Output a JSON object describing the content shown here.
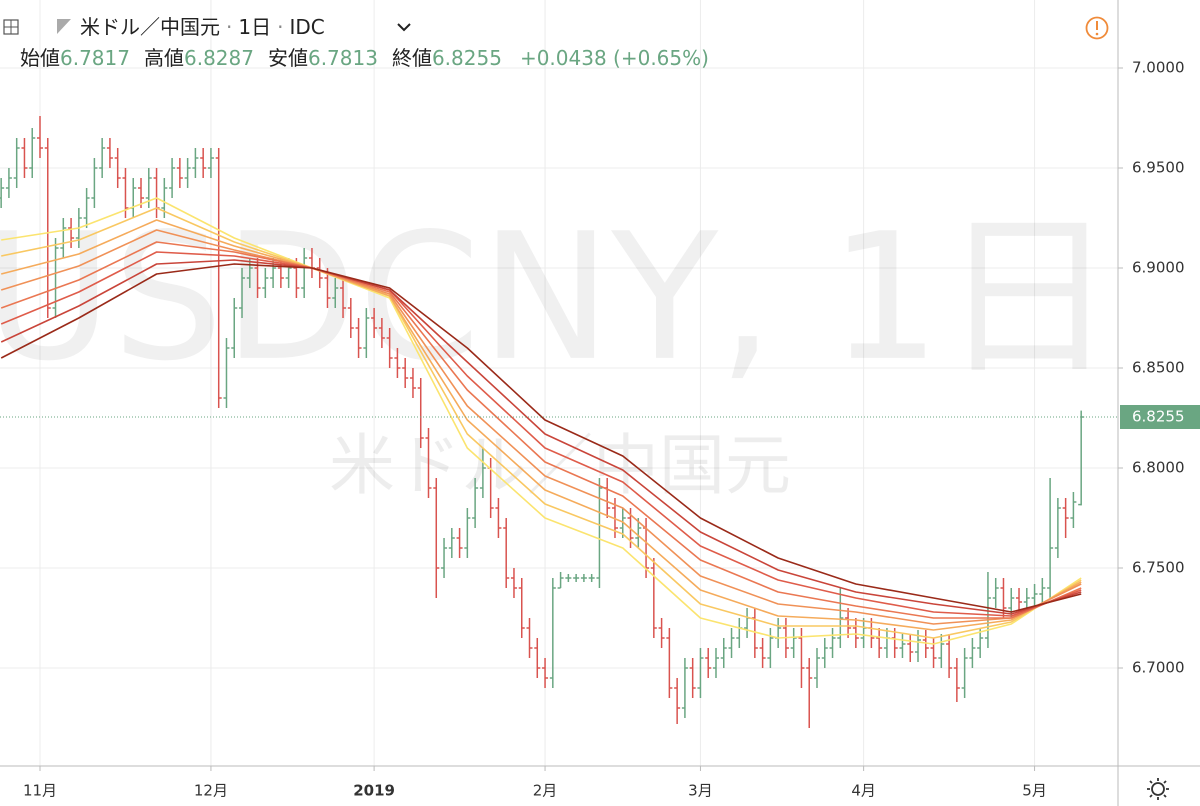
{
  "chart_data": {
    "type": "ohlc",
    "symbol": "米ドル／中国元",
    "interval": "1日",
    "source": "IDC",
    "watermark": "USDCNY, 1日",
    "ohlc_labels": [
      "始値",
      "高値",
      "安値",
      "終値"
    ],
    "change": "+0.0438 (+0.65%)",
    "up_color": "#6aa682",
    "down_color": "#d9534f",
    "ylim": [
      6.651,
      7.034
    ],
    "yticks": [
      {
        "value": 6.7,
        "label": "6.7000"
      },
      {
        "value": 6.75,
        "label": "6.7500"
      },
      {
        "value": 6.8,
        "label": "6.8000"
      },
      {
        "value": 6.85,
        "label": "6.8500"
      },
      {
        "value": 6.9,
        "label": "6.9000"
      },
      {
        "value": 6.95,
        "label": "6.9500"
      },
      {
        "value": 7,
        "label": "7.0000"
      }
    ],
    "grid": true,
    "categories": [
      null,
      null,
      null,
      null,
      null,
      "11月",
      null,
      null,
      null,
      null,
      null,
      null,
      null,
      null,
      null,
      null,
      null,
      null,
      null,
      null,
      null,
      null,
      null,
      null,
      null,
      null,
      null,
      "12月",
      null,
      null,
      null,
      null,
      null,
      null,
      null,
      null,
      null,
      null,
      null,
      null,
      null,
      null,
      null,
      null,
      null,
      null,
      null,
      null,
      "2019",
      null,
      null,
      null,
      null,
      null,
      null,
      null,
      null,
      null,
      null,
      null,
      null,
      null,
      null,
      null,
      null,
      null,
      null,
      null,
      null,
      null,
      "2月",
      null,
      null,
      null,
      null,
      null,
      null,
      null,
      null,
      null,
      null,
      null,
      null,
      null,
      null,
      null,
      null,
      null,
      null,
      null,
      "3月",
      null,
      null,
      null,
      null,
      null,
      null,
      null,
      null,
      null,
      null,
      null,
      null,
      null,
      null,
      null,
      null,
      null,
      null,
      null,
      null,
      "4月",
      null,
      null,
      null,
      null,
      null,
      null,
      null,
      null,
      null,
      null,
      null,
      null,
      null,
      null,
      null,
      null,
      null,
      null,
      null,
      null,
      null,
      "5月",
      null,
      null,
      null,
      null,
      null,
      null
    ],
    "open": [
      6.935,
      6.94,
      6.945,
      6.96,
      6.95,
      6.965,
      6.96,
      6.88,
      6.91,
      6.92,
      6.915,
      6.925,
      6.935,
      6.95,
      6.96,
      6.955,
      6.945,
      6.93,
      6.94,
      6.935,
      6.945,
      6.93,
      6.94,
      6.95,
      6.945,
      6.95,
      6.955,
      6.95,
      6.955,
      6.835,
      6.86,
      6.88,
      6.895,
      6.9,
      6.89,
      6.895,
      6.9,
      6.895,
      6.9,
      6.89,
      6.905,
      6.9,
      6.895,
      6.885,
      6.89,
      6.88,
      6.87,
      6.86,
      6.875,
      6.87,
      6.865,
      6.855,
      6.85,
      6.845,
      6.84,
      6.815,
      6.79,
      6.75,
      6.76,
      6.765,
      6.76,
      6.775,
      6.79,
      6.8,
      6.78,
      6.77,
      6.745,
      6.74,
      6.72,
      6.71,
      6.7,
      6.695,
      6.74,
      6.745,
      6.745,
      6.745,
      6.745,
      6.745,
      6.79,
      6.78,
      6.77,
      6.775,
      6.765,
      6.77,
      6.75,
      6.72,
      6.715,
      6.69,
      6.68,
      6.7,
      6.69,
      6.705,
      6.7,
      6.705,
      6.71,
      6.715,
      6.72,
      6.725,
      6.71,
      6.705,
      6.715,
      6.72,
      6.71,
      6.715,
      6.7,
      6.695,
      6.705,
      6.71,
      6.715,
      6.725,
      6.72,
      6.715,
      6.72,
      6.715,
      6.71,
      6.715,
      6.71,
      6.712,
      6.708,
      6.714,
      6.71,
      6.705,
      6.712,
      6.7,
      6.69,
      6.705,
      6.71,
      6.715,
      6.735,
      6.74,
      6.73,
      6.735,
      6.733,
      6.735,
      6.737,
      6.74,
      6.76,
      6.78,
      6.775,
      6.7817
    ],
    "high": [
      6.945,
      6.95,
      6.965,
      6.965,
      6.97,
      6.976,
      6.965,
      6.915,
      6.925,
      6.925,
      6.93,
      6.94,
      6.955,
      6.965,
      6.965,
      6.96,
      6.95,
      6.945,
      6.945,
      6.95,
      6.95,
      6.945,
      6.955,
      6.955,
      6.955,
      6.96,
      6.96,
      6.96,
      6.96,
      6.865,
      6.885,
      6.9,
      6.905,
      6.905,
      6.9,
      6.905,
      6.905,
      6.905,
      6.905,
      6.91,
      6.91,
      6.905,
      6.9,
      6.895,
      6.895,
      6.885,
      6.875,
      6.88,
      6.88,
      6.875,
      6.87,
      6.86,
      6.855,
      6.85,
      6.845,
      6.82,
      6.795,
      6.765,
      6.77,
      6.77,
      6.78,
      6.795,
      6.81,
      6.805,
      6.785,
      6.775,
      6.75,
      6.745,
      6.725,
      6.715,
      6.705,
      6.745,
      6.748,
      6.747,
      6.747,
      6.747,
      6.747,
      6.795,
      6.795,
      6.785,
      6.78,
      6.78,
      6.775,
      6.775,
      6.755,
      6.725,
      6.72,
      6.695,
      6.705,
      6.705,
      6.71,
      6.71,
      6.71,
      6.715,
      6.72,
      6.725,
      6.73,
      6.73,
      6.715,
      6.72,
      6.725,
      6.725,
      6.72,
      6.72,
      6.705,
      6.71,
      6.715,
      6.72,
      6.74,
      6.73,
      6.725,
      6.725,
      6.725,
      6.72,
      6.72,
      6.72,
      6.717,
      6.717,
      6.719,
      6.719,
      6.715,
      6.717,
      6.717,
      6.705,
      6.71,
      6.715,
      6.72,
      6.748,
      6.745,
      6.745,
      6.74,
      6.74,
      6.74,
      6.742,
      6.745,
      6.795,
      6.785,
      6.785,
      6.788,
      6.8287
    ],
    "low": [
      6.93,
      6.935,
      6.94,
      6.945,
      6.945,
      6.955,
      6.875,
      6.875,
      6.905,
      6.91,
      6.91,
      6.92,
      6.93,
      6.945,
      6.95,
      6.94,
      6.925,
      6.925,
      6.93,
      6.93,
      6.925,
      6.925,
      6.935,
      6.94,
      6.94,
      6.945,
      6.945,
      6.945,
      6.83,
      6.83,
      6.855,
      6.875,
      6.89,
      6.885,
      6.885,
      6.89,
      6.89,
      6.89,
      6.885,
      6.885,
      6.895,
      6.89,
      6.88,
      6.88,
      6.875,
      6.865,
      6.855,
      6.855,
      6.865,
      6.86,
      6.85,
      6.845,
      6.84,
      6.835,
      6.81,
      6.785,
      6.735,
      6.745,
      6.755,
      6.755,
      6.755,
      6.77,
      6.785,
      6.775,
      6.765,
      6.74,
      6.735,
      6.715,
      6.705,
      6.695,
      6.69,
      6.69,
      6.74,
      6.743,
      6.743,
      6.743,
      6.743,
      6.74,
      6.775,
      6.765,
      6.765,
      6.76,
      6.76,
      6.745,
      6.715,
      6.71,
      6.685,
      6.672,
      6.675,
      6.685,
      6.685,
      6.695,
      6.695,
      6.7,
      6.705,
      6.71,
      6.715,
      6.705,
      6.7,
      6.7,
      6.71,
      6.705,
      6.705,
      6.69,
      6.67,
      6.69,
      6.7,
      6.705,
      6.71,
      6.715,
      6.71,
      6.71,
      6.71,
      6.705,
      6.705,
      6.705,
      6.705,
      6.703,
      6.703,
      6.705,
      6.7,
      6.7,
      6.695,
      6.683,
      6.685,
      6.7,
      6.705,
      6.71,
      6.73,
      6.725,
      6.725,
      6.728,
      6.728,
      6.73,
      6.732,
      6.735,
      6.755,
      6.765,
      6.77,
      6.7813
    ],
    "close": [
      6.94,
      6.945,
      6.96,
      6.95,
      6.965,
      6.96,
      6.88,
      6.91,
      6.92,
      6.915,
      6.925,
      6.935,
      6.95,
      6.96,
      6.955,
      6.945,
      6.93,
      6.94,
      6.935,
      6.945,
      6.93,
      6.94,
      6.95,
      6.945,
      6.95,
      6.955,
      6.95,
      6.955,
      6.835,
      6.86,
      6.88,
      6.895,
      6.9,
      6.89,
      6.895,
      6.9,
      6.895,
      6.9,
      6.89,
      6.905,
      6.9,
      6.895,
      6.885,
      6.89,
      6.88,
      6.87,
      6.86,
      6.875,
      6.87,
      6.865,
      6.855,
      6.85,
      6.845,
      6.84,
      6.815,
      6.79,
      6.75,
      6.76,
      6.765,
      6.76,
      6.775,
      6.79,
      6.8,
      6.78,
      6.77,
      6.745,
      6.74,
      6.72,
      6.71,
      6.7,
      6.695,
      6.74,
      6.745,
      6.745,
      6.745,
      6.745,
      6.745,
      6.79,
      6.78,
      6.77,
      6.775,
      6.765,
      6.77,
      6.75,
      6.72,
      6.715,
      6.69,
      6.68,
      6.7,
      6.69,
      6.705,
      6.7,
      6.705,
      6.71,
      6.715,
      6.72,
      6.725,
      6.71,
      6.705,
      6.715,
      6.72,
      6.71,
      6.715,
      6.7,
      6.695,
      6.705,
      6.71,
      6.715,
      6.725,
      6.72,
      6.715,
      6.72,
      6.715,
      6.71,
      6.715,
      6.71,
      6.712,
      6.708,
      6.714,
      6.71,
      6.705,
      6.712,
      6.7,
      6.69,
      6.705,
      6.71,
      6.715,
      6.735,
      6.74,
      6.73,
      6.735,
      6.733,
      6.735,
      6.737,
      6.74,
      6.76,
      6.78,
      6.775,
      6.783,
      6.8255
    ],
    "line_x": [
      0,
      10,
      20,
      30,
      40,
      50,
      60,
      70,
      80,
      90,
      100,
      110,
      120,
      130,
      139
    ],
    "lines": [
      {
        "color": "#fbe46f",
        "values": [
          6.914,
          6.92,
          6.935,
          6.915,
          6.9,
          6.885,
          6.81,
          6.775,
          6.76,
          6.725,
          6.715,
          6.717,
          6.712,
          6.722,
          6.745
        ]
      },
      {
        "color": "#f9c862",
        "values": [
          6.906,
          6.914,
          6.93,
          6.913,
          6.9,
          6.886,
          6.817,
          6.782,
          6.767,
          6.732,
          6.721,
          6.721,
          6.715,
          6.723,
          6.744
        ]
      },
      {
        "color": "#f5ab5b",
        "values": [
          6.897,
          6.907,
          6.924,
          6.911,
          6.9,
          6.886,
          6.824,
          6.789,
          6.773,
          6.739,
          6.726,
          6.724,
          6.719,
          6.724,
          6.743
        ]
      },
      {
        "color": "#f09157",
        "values": [
          6.889,
          6.901,
          6.919,
          6.909,
          6.9,
          6.887,
          6.831,
          6.796,
          6.78,
          6.746,
          6.732,
          6.728,
          6.722,
          6.725,
          6.742
        ]
      },
      {
        "color": "#ea7752",
        "values": [
          6.88,
          6.894,
          6.913,
          6.908,
          6.9,
          6.888,
          6.839,
          6.803,
          6.786,
          6.754,
          6.738,
          6.731,
          6.725,
          6.725,
          6.74
        ]
      },
      {
        "color": "#df5c4a",
        "values": [
          6.872,
          6.888,
          6.908,
          6.906,
          6.9,
          6.889,
          6.846,
          6.81,
          6.793,
          6.761,
          6.744,
          6.735,
          6.728,
          6.726,
          6.739
        ]
      },
      {
        "color": "#c9453a",
        "values": [
          6.863,
          6.881,
          6.902,
          6.904,
          6.9,
          6.889,
          6.853,
          6.817,
          6.799,
          6.768,
          6.749,
          6.738,
          6.732,
          6.727,
          6.738
        ]
      },
      {
        "color": "#9a2a19",
        "values": [
          6.855,
          6.875,
          6.897,
          6.902,
          6.9,
          6.89,
          6.86,
          6.824,
          6.806,
          6.775,
          6.755,
          6.742,
          6.735,
          6.728,
          6.737
        ]
      }
    ]
  }
}
